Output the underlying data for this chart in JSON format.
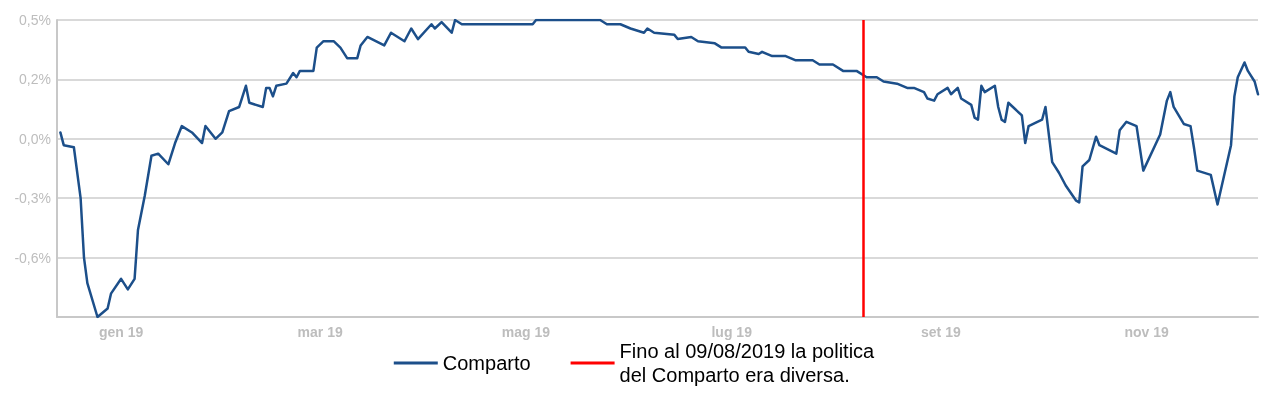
{
  "chart_data": {
    "type": "line",
    "x": [
      "2018-12-14",
      "2018-12-15",
      "2018-12-18",
      "2018-12-20",
      "2018-12-21",
      "2018-12-22",
      "2018-12-25",
      "2018-12-28",
      "2018-12-29",
      "2019-01-01",
      "2019-01-03",
      "2019-01-05",
      "2019-01-06",
      "2019-01-08",
      "2019-01-10",
      "2019-01-12",
      "2019-01-15",
      "2019-01-17",
      "2019-01-19",
      "2019-01-22",
      "2019-01-25",
      "2019-01-26",
      "2019-01-29",
      "2019-01-31",
      "2019-02-02",
      "2019-02-05",
      "2019-02-07",
      "2019-02-08",
      "2019-02-12",
      "2019-02-13",
      "2019-02-14",
      "2019-02-15",
      "2019-02-16",
      "2019-02-19",
      "2019-02-21",
      "2019-02-22",
      "2019-02-23",
      "2019-02-27",
      "2019-02-28",
      "2019-03-02",
      "2019-03-05",
      "2019-03-07",
      "2019-03-09",
      "2019-03-12",
      "2019-03-13",
      "2019-03-15",
      "2019-03-20",
      "2019-03-22",
      "2019-03-26",
      "2019-03-28",
      "2019-03-30",
      "2019-04-03",
      "2019-04-04",
      "2019-04-06",
      "2019-04-09",
      "2019-04-10",
      "2019-04-12",
      "2019-04-17",
      "2019-04-18",
      "2019-04-19",
      "2019-04-25",
      "2019-04-27",
      "2019-05-03",
      "2019-05-04",
      "2019-05-23",
      "2019-05-25",
      "2019-05-29",
      "2019-06-01",
      "2019-06-05",
      "2019-06-06",
      "2019-06-08",
      "2019-06-14",
      "2019-06-15",
      "2019-06-19",
      "2019-06-21",
      "2019-06-26",
      "2019-06-28",
      "2019-07-05",
      "2019-07-06",
      "2019-07-09",
      "2019-07-10",
      "2019-07-13",
      "2019-07-17",
      "2019-07-20",
      "2019-07-25",
      "2019-07-27",
      "2019-07-31",
      "2019-08-03",
      "2019-08-07",
      "2019-08-10",
      "2019-08-13",
      "2019-08-15",
      "2019-08-19",
      "2019-08-22",
      "2019-08-24",
      "2019-08-27",
      "2019-08-28",
      "2019-08-30",
      "2019-08-31",
      "2019-09-03",
      "2019-09-04",
      "2019-09-06",
      "2019-09-07",
      "2019-09-10",
      "2019-09-11",
      "2019-09-12",
      "2019-09-13",
      "2019-09-14",
      "2019-09-17",
      "2019-09-18",
      "2019-09-19",
      "2019-09-20",
      "2019-09-21",
      "2019-09-25",
      "2019-09-26",
      "2019-09-27",
      "2019-10-01",
      "2019-10-02",
      "2019-10-04",
      "2019-10-06",
      "2019-10-08",
      "2019-10-11",
      "2019-10-12",
      "2019-10-13",
      "2019-10-15",
      "2019-10-17",
      "2019-10-18",
      "2019-10-23",
      "2019-10-24",
      "2019-10-26",
      "2019-10-29",
      "2019-10-31",
      "2019-11-05",
      "2019-11-07",
      "2019-11-08",
      "2019-11-09",
      "2019-11-12",
      "2019-11-14",
      "2019-11-15",
      "2019-11-16",
      "2019-11-20",
      "2019-11-22",
      "2019-11-26",
      "2019-11-27",
      "2019-11-28",
      "2019-11-30",
      "2019-12-01",
      "2019-12-03",
      "2019-12-04"
    ],
    "series": [
      {
        "name": "Comparto",
        "color": "#1c4f8a",
        "values": [
          -0.01,
          -0.07,
          -0.08,
          -0.32,
          -0.6,
          -0.72,
          -0.88,
          -0.84,
          -0.77,
          -0.7,
          -0.75,
          -0.7,
          -0.47,
          -0.31,
          -0.12,
          -0.11,
          -0.16,
          -0.06,
          0.02,
          -0.01,
          -0.06,
          0.02,
          -0.04,
          -0.01,
          0.09,
          0.11,
          0.21,
          0.13,
          0.11,
          0.2,
          0.2,
          0.16,
          0.21,
          0.22,
          0.27,
          0.25,
          0.28,
          0.28,
          0.39,
          0.42,
          0.42,
          0.39,
          0.34,
          0.34,
          0.4,
          0.44,
          0.4,
          0.46,
          0.42,
          0.48,
          0.43,
          0.5,
          0.48,
          0.51,
          0.46,
          0.52,
          0.5,
          0.5,
          0.5,
          0.5,
          0.5,
          0.5,
          0.5,
          0.52,
          0.52,
          0.5,
          0.5,
          0.48,
          0.46,
          0.48,
          0.46,
          0.45,
          0.43,
          0.44,
          0.42,
          0.41,
          0.39,
          0.39,
          0.37,
          0.36,
          0.37,
          0.35,
          0.35,
          0.33,
          0.33,
          0.31,
          0.31,
          0.28,
          0.28,
          0.25,
          0.25,
          0.23,
          0.22,
          0.2,
          0.2,
          0.18,
          0.15,
          0.14,
          0.17,
          0.2,
          0.17,
          0.2,
          0.15,
          0.12,
          0.06,
          0.05,
          0.21,
          0.18,
          0.21,
          0.11,
          0.05,
          0.04,
          0.13,
          0.07,
          -0.06,
          0.02,
          0.05,
          0.11,
          -0.15,
          -0.2,
          -0.26,
          -0.33,
          -0.34,
          -0.17,
          -0.14,
          -0.03,
          -0.07,
          -0.11,
          0.0,
          0.04,
          0.02,
          -0.19,
          -0.02,
          0.14,
          0.18,
          0.11,
          0.03,
          0.02,
          -0.08,
          -0.19,
          -0.21,
          -0.35,
          -0.07,
          0.16,
          0.25,
          0.32,
          0.28,
          0.23,
          0.17
        ]
      }
    ],
    "xlim": [
      "2018-12-13",
      "2019-12-04"
    ],
    "xticks": [
      {
        "value": "2019-01-01",
        "label": "gen 19"
      },
      {
        "value": "2019-03-01",
        "label": "mar 19"
      },
      {
        "value": "2019-05-01",
        "label": "mag 19"
      },
      {
        "value": "2019-07-01",
        "label": "lug 19"
      },
      {
        "value": "2019-09-01",
        "label": "set 19"
      },
      {
        "value": "2019-11-01",
        "label": "nov 19"
      }
    ],
    "ylim": [
      -0.88,
      0.52
    ],
    "yticks": [
      {
        "value": 0.52,
        "label": "0,5%"
      },
      {
        "value": 0.24,
        "label": "0,2%"
      },
      {
        "value": -0.04,
        "label": "0,0%"
      },
      {
        "value": -0.32,
        "label": "-0,3%"
      },
      {
        "value": -0.6,
        "label": "-0,6%"
      }
    ],
    "ref_lines": [
      {
        "axis": "x",
        "value": "2019-08-09",
        "label": "Fino al 09/08/2019 la politica\ndel Comparto era diversa.",
        "color": "#ff0000"
      }
    ],
    "grid": "y",
    "legend": "bottom",
    "marker": "none",
    "line_style": "solid"
  }
}
